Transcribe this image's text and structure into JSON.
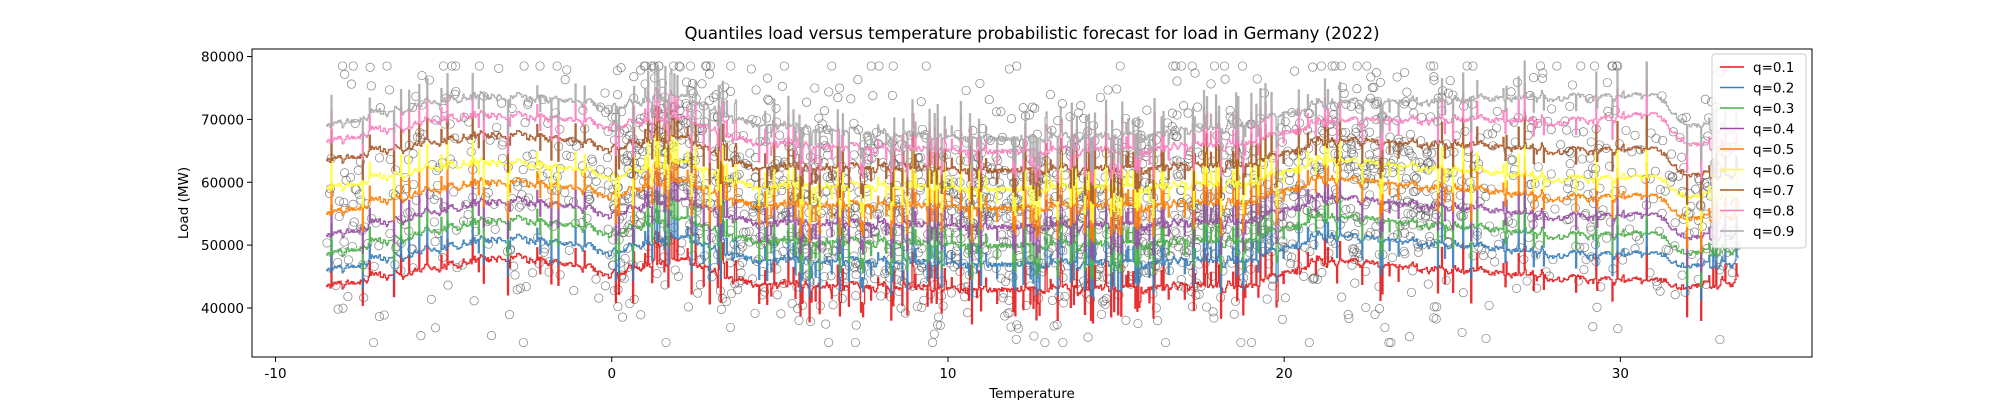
{
  "chart_data": {
    "type": "line",
    "title": "Quantiles load versus temperature probabilistic forecast for load in Germany (2022)",
    "xlabel": "Temperature",
    "ylabel": "Load (MW)",
    "xlim": [
      -10.7,
      35.7
    ],
    "ylim": [
      32200,
      81200
    ],
    "xticks": [
      -10,
      0,
      10,
      20,
      30
    ],
    "yticks": [
      40000,
      50000,
      60000,
      70000,
      80000
    ],
    "grid": false,
    "legend_position": "top-right",
    "observations": {
      "marker": "hollow-circle",
      "color": "#555555",
      "temperature_range": [
        -8.5,
        33.5
      ],
      "load_range": [
        34500,
        78500
      ],
      "count_estimate": 2500
    },
    "series": [
      {
        "name": "q=0.1",
        "color": "#e41a1c",
        "x": [
          -8.5,
          -5,
          -3,
          0,
          2,
          4,
          8,
          12,
          16,
          19,
          21,
          25,
          28,
          31,
          32,
          33.5
        ],
        "y": [
          43500,
          46500,
          48500,
          45500,
          48000,
          44000,
          43200,
          43000,
          43200,
          43800,
          47500,
          46000,
          44800,
          44500,
          43200,
          44500
        ]
      },
      {
        "name": "q=0.2",
        "color": "#377eb8",
        "x": [
          -8.5,
          -5,
          -3,
          0,
          2,
          4,
          8,
          12,
          16,
          19,
          21,
          25,
          28,
          31,
          32,
          33.5
        ],
        "y": [
          46000,
          49500,
          51500,
          49000,
          51500,
          47800,
          47200,
          47000,
          47200,
          47800,
          51500,
          50000,
          48500,
          48800,
          46500,
          47500
        ]
      },
      {
        "name": "q=0.3",
        "color": "#4daf4a",
        "x": [
          -8.5,
          -5,
          -3,
          0,
          2,
          4,
          8,
          12,
          16,
          19,
          21,
          25,
          28,
          31,
          32,
          33.5
        ],
        "y": [
          48500,
          52500,
          54500,
          52000,
          54500,
          50800,
          50300,
          50000,
          50200,
          51000,
          54500,
          53000,
          51500,
          52000,
          48500,
          49500
        ]
      },
      {
        "name": "q=0.4",
        "color": "#984ea3",
        "x": [
          -8.5,
          -5,
          -3,
          0,
          2,
          4,
          8,
          12,
          16,
          19,
          21,
          25,
          28,
          31,
          32,
          33.5
        ],
        "y": [
          51500,
          55500,
          57500,
          55000,
          57500,
          53800,
          53200,
          53000,
          53200,
          54000,
          57500,
          56000,
          54500,
          55000,
          51000,
          52000
        ]
      },
      {
        "name": "q=0.5",
        "color": "#ff7f00",
        "x": [
          -8.5,
          -5,
          -3,
          0,
          2,
          4,
          8,
          12,
          16,
          19,
          21,
          25,
          28,
          31,
          32,
          33.5
        ],
        "y": [
          55000,
          59000,
          60500,
          58000,
          60500,
          56500,
          56200,
          56000,
          56200,
          57000,
          60500,
          59000,
          57500,
          58000,
          54000,
          55000
        ]
      },
      {
        "name": "q=0.6",
        "color": "#ffff33",
        "x": [
          -8.5,
          -5,
          -3,
          0,
          2,
          4,
          8,
          12,
          16,
          19,
          21,
          25,
          28,
          31,
          32,
          33.5
        ],
        "y": [
          59000,
          62500,
          63500,
          61000,
          63500,
          59500,
          59200,
          59000,
          59200,
          60000,
          63500,
          62000,
          60500,
          61000,
          57500,
          58500
        ]
      },
      {
        "name": "q=0.7",
        "color": "#a65628",
        "x": [
          -8.5,
          -5,
          -3,
          0,
          2,
          4,
          8,
          12,
          16,
          19,
          21,
          25,
          28,
          31,
          32,
          33.5
        ],
        "y": [
          63500,
          66500,
          68000,
          65500,
          67500,
          62500,
          62200,
          62000,
          62200,
          63000,
          66500,
          66000,
          65000,
          65500,
          61000,
          61500
        ]
      },
      {
        "name": "q=0.8",
        "color": "#f781bf",
        "x": [
          -8.5,
          -5,
          -3,
          0,
          2,
          4,
          8,
          12,
          16,
          19,
          21,
          25,
          28,
          31,
          32,
          33.5
        ],
        "y": [
          66500,
          70000,
          71000,
          69000,
          70500,
          66500,
          65200,
          65000,
          65200,
          66500,
          69500,
          70000,
          69500,
          71000,
          66000,
          65500
        ]
      },
      {
        "name": "q=0.9",
        "color": "#aaaaaa",
        "x": [
          -8.5,
          -5,
          -3,
          0,
          2,
          4,
          8,
          12,
          16,
          19,
          21,
          25,
          28,
          31,
          32,
          33.5
        ],
        "y": [
          69000,
          73000,
          74000,
          72000,
          74000,
          69500,
          67500,
          67000,
          67500,
          69500,
          72500,
          73000,
          73500,
          74000,
          69000,
          68500
        ]
      }
    ]
  }
}
